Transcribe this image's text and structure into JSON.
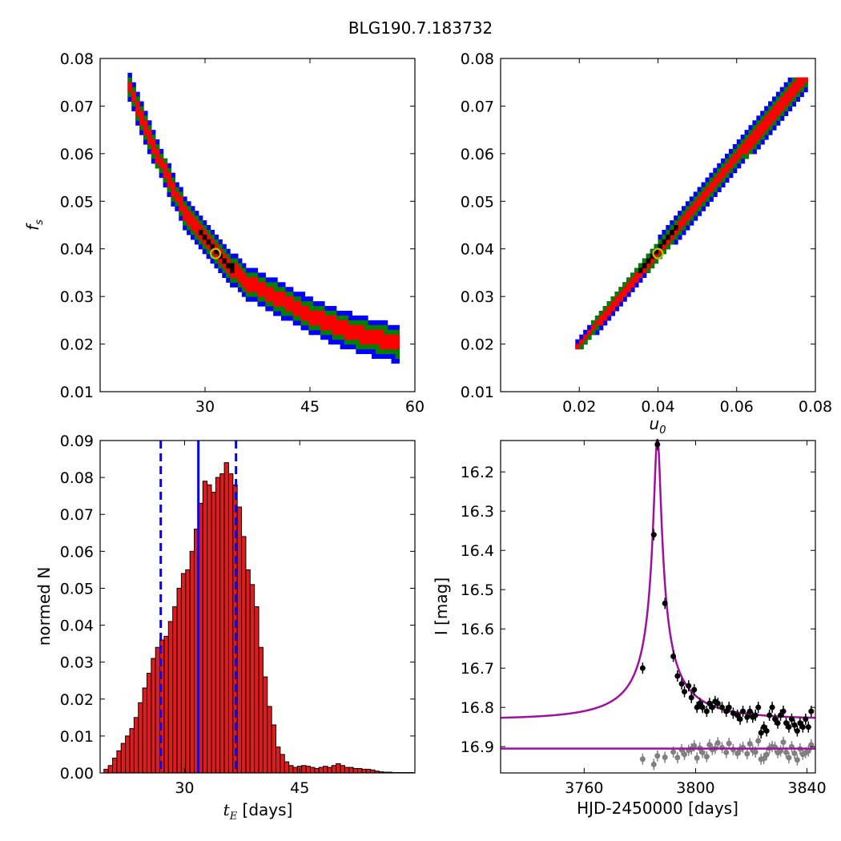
{
  "title": "BLG190.7.183732",
  "colors": {
    "outer": "#0000ff",
    "mid": "#008000",
    "inner": "#ff0000",
    "core": "#000000",
    "best_fit_marker": "#bfbf00",
    "model_line": "#a010a0",
    "residuals": "#808080",
    "histogram": "#e31a1c",
    "median_line": "#0000ff"
  },
  "chart_data": [
    {
      "type": "heatmap",
      "panel": "top-left",
      "xlabel": "",
      "ylabel": "f_s",
      "xlim": [
        15,
        60
      ],
      "ylim": [
        0.01,
        0.08
      ],
      "xticks": [
        "30",
        "45",
        "60"
      ],
      "yticks": [
        "0.01",
        "0.02",
        "0.03",
        "0.04",
        "0.05",
        "0.06",
        "0.07",
        "0.08"
      ],
      "band_center": [
        [
          19,
          0.075
        ],
        [
          21,
          0.067
        ],
        [
          24,
          0.057
        ],
        [
          27,
          0.048
        ],
        [
          30,
          0.042
        ],
        [
          33,
          0.037
        ],
        [
          36,
          0.033
        ],
        [
          40,
          0.03
        ],
        [
          45,
          0.026
        ],
        [
          50,
          0.023
        ],
        [
          55,
          0.021
        ],
        [
          58,
          0.02
        ]
      ],
      "best_fit": {
        "t_E": 31.5,
        "f_s": 0.039
      },
      "levels": [
        "outer",
        "mid",
        "inner",
        "core"
      ]
    },
    {
      "type": "heatmap",
      "panel": "top-right",
      "xlabel": "u_0",
      "ylabel": "",
      "xlim": [
        0.0,
        0.08
      ],
      "ylim": [
        0.01,
        0.08
      ],
      "xticks": [
        "0.02",
        "0.04",
        "0.06",
        "0.08"
      ],
      "yticks": [
        "0.01",
        "0.02",
        "0.03",
        "0.04",
        "0.05",
        "0.06",
        "0.07",
        "0.08"
      ],
      "band_center": [
        [
          0.02,
          0.02
        ],
        [
          0.03,
          0.029
        ],
        [
          0.04,
          0.039
        ],
        [
          0.05,
          0.049
        ],
        [
          0.06,
          0.059
        ],
        [
          0.07,
          0.069
        ],
        [
          0.076,
          0.075
        ]
      ],
      "best_fit": {
        "u_0": 0.04,
        "f_s": 0.039
      },
      "levels": [
        "outer",
        "mid",
        "inner",
        "core"
      ]
    },
    {
      "type": "bar",
      "panel": "bottom-left",
      "xlabel": "t_E [days]",
      "ylabel": "normed N",
      "xlim": [
        19,
        60
      ],
      "ylim": [
        0,
        0.09
      ],
      "xticks": [
        "30",
        "45"
      ],
      "yticks": [
        "0.00",
        "0.01",
        "0.02",
        "0.03",
        "0.04",
        "0.05",
        "0.06",
        "0.07",
        "0.08",
        "0.09"
      ],
      "bin_start": 19.5,
      "bin_width": 0.56,
      "values": [
        0.001,
        0.002,
        0.004,
        0.006,
        0.008,
        0.01,
        0.012,
        0.015,
        0.019,
        0.023,
        0.027,
        0.031,
        0.034,
        0.036,
        0.037,
        0.041,
        0.045,
        0.05,
        0.054,
        0.055,
        0.06,
        0.066,
        0.073,
        0.079,
        0.078,
        0.076,
        0.08,
        0.081,
        0.084,
        0.081,
        0.078,
        0.072,
        0.064,
        0.055,
        0.051,
        0.045,
        0.034,
        0.026,
        0.018,
        0.013,
        0.007,
        0.005,
        0.003,
        0.002,
        0.0015,
        0.0018,
        0.002,
        0.0018,
        0.0015,
        0.0012,
        0.0015,
        0.0018,
        0.0015,
        0.002,
        0.0025,
        0.002,
        0.0015,
        0.0015,
        0.0012,
        0.0012,
        0.001,
        0.001,
        0.0008,
        0.0005,
        0.0003,
        0.0002,
        0.0002,
        0.0001,
        0.0001,
        0.0001,
        0.0001,
        0.0001
      ],
      "median": 31.8,
      "interval": [
        26.9,
        36.7
      ]
    },
    {
      "type": "scatter",
      "panel": "bottom-right",
      "xlabel": "HJD-2450000 [days]",
      "ylabel": "I [mag]",
      "xlim": [
        3730,
        3843
      ],
      "ylim": [
        16.967,
        16.12
      ],
      "xticks": [
        "3760",
        "3800",
        "3840"
      ],
      "yticks": [
        "16.2",
        "16.3",
        "16.4",
        "16.5",
        "16.6",
        "16.7",
        "16.8",
        "16.9"
      ],
      "model": {
        "t0": 3786.3,
        "u0": 0.04,
        "tE": 31.5,
        "fs": 0.039,
        "I_base": 16.83
      },
      "residual_baseline": 16.905,
      "points": [
        {
          "x": 3781,
          "y": 16.7
        },
        {
          "x": 3785,
          "y": 16.36
        },
        {
          "x": 3786.3,
          "y": 16.13
        },
        {
          "x": 3789,
          "y": 16.535
        },
        {
          "x": 3792,
          "y": 16.67
        },
        {
          "x": 3793.5,
          "y": 16.72
        },
        {
          "x": 3795,
          "y": 16.74
        },
        {
          "x": 3796,
          "y": 16.76
        },
        {
          "x": 3797.5,
          "y": 16.745
        },
        {
          "x": 3798.5,
          "y": 16.775
        },
        {
          "x": 3799.5,
          "y": 16.755
        },
        {
          "x": 3800.5,
          "y": 16.8
        },
        {
          "x": 3801.5,
          "y": 16.79
        },
        {
          "x": 3802.5,
          "y": 16.8
        },
        {
          "x": 3804,
          "y": 16.81
        },
        {
          "x": 3805,
          "y": 16.79
        },
        {
          "x": 3806,
          "y": 16.8
        },
        {
          "x": 3807,
          "y": 16.785
        },
        {
          "x": 3808,
          "y": 16.79
        },
        {
          "x": 3809.5,
          "y": 16.8
        },
        {
          "x": 3811,
          "y": 16.81
        },
        {
          "x": 3812,
          "y": 16.8
        },
        {
          "x": 3813.5,
          "y": 16.815
        },
        {
          "x": 3815,
          "y": 16.82
        },
        {
          "x": 3816,
          "y": 16.83
        },
        {
          "x": 3817,
          "y": 16.81
        },
        {
          "x": 3818.5,
          "y": 16.825
        },
        {
          "x": 3819.5,
          "y": 16.81
        },
        {
          "x": 3820.5,
          "y": 16.825
        },
        {
          "x": 3821.5,
          "y": 16.82
        },
        {
          "x": 3822.5,
          "y": 16.8
        },
        {
          "x": 3823.5,
          "y": 16.865
        },
        {
          "x": 3824.5,
          "y": 16.85
        },
        {
          "x": 3825.5,
          "y": 16.86
        },
        {
          "x": 3826.5,
          "y": 16.82
        },
        {
          "x": 3827.5,
          "y": 16.8
        },
        {
          "x": 3828.5,
          "y": 16.83
        },
        {
          "x": 3829.5,
          "y": 16.84
        },
        {
          "x": 3830.5,
          "y": 16.82
        },
        {
          "x": 3831.5,
          "y": 16.81
        },
        {
          "x": 3832.5,
          "y": 16.84
        },
        {
          "x": 3833.5,
          "y": 16.85
        },
        {
          "x": 3834.5,
          "y": 16.83
        },
        {
          "x": 3835.5,
          "y": 16.845
        },
        {
          "x": 3836.5,
          "y": 16.86
        },
        {
          "x": 3837.5,
          "y": 16.84
        },
        {
          "x": 3838.5,
          "y": 16.85
        },
        {
          "x": 3839.5,
          "y": 16.83
        },
        {
          "x": 3840.5,
          "y": 16.85
        },
        {
          "x": 3841.5,
          "y": 16.81
        }
      ]
    }
  ]
}
